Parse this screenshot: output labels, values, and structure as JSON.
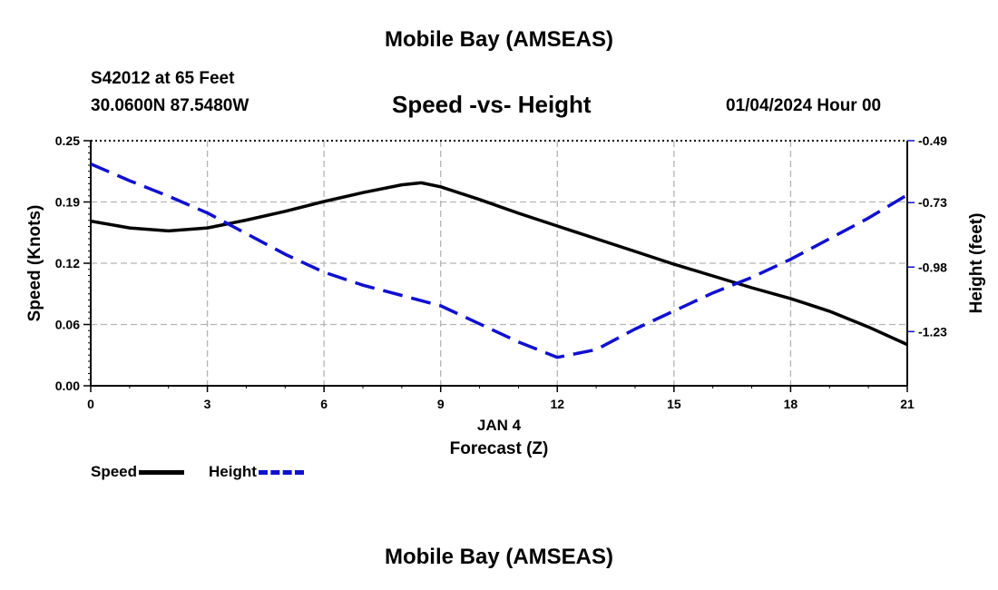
{
  "header": {
    "title_top": "Mobile Bay (AMSEAS)",
    "station": "S42012 at 65 Feet",
    "coords": "30.0600N  87.5480W",
    "chart_title": "Speed -vs- Height",
    "datetime": "01/04/2024 Hour 00",
    "title_bottom": "Mobile Bay (AMSEAS)"
  },
  "legend": {
    "speed_label": "Speed",
    "height_label": "Height"
  },
  "colors": {
    "speed": "#000000",
    "height": "#1010d0",
    "grid": "#b4b4b4"
  },
  "chart_data": {
    "type": "line",
    "title": "Speed -vs- Height",
    "xlabel": "Forecast (Z)",
    "xlabel_date": "JAN 4",
    "ylabel": "Speed (Knots)",
    "y2label": "Height (feet)",
    "xlim": [
      0,
      21
    ],
    "ylim": [
      0,
      0.25
    ],
    "y2lim": [
      -1.44,
      -0.49
    ],
    "x_ticks": [
      "0",
      "3",
      "6",
      "9",
      "12",
      "15",
      "18",
      "21"
    ],
    "y_ticks": [
      "0.00",
      "0.06",
      "0.12",
      "0.19",
      "0.25"
    ],
    "y_tick_values": [
      0,
      0.0625,
      0.125,
      0.1875,
      0.25
    ],
    "y2_ticks": [
      "-0.49",
      "-0.73",
      "-0.98",
      "-1.23"
    ],
    "y2_tick_values": [
      -0.49,
      -0.73,
      -0.98,
      -1.23
    ],
    "grid": true,
    "legend": "bottom-left",
    "series": [
      {
        "name": "Speed",
        "axis": "left",
        "style": "solid",
        "x": [
          0,
          1,
          2,
          3,
          4,
          5,
          6,
          7,
          8,
          8.5,
          9,
          10,
          11,
          12,
          13,
          14,
          15,
          16,
          17,
          18,
          19,
          20,
          21
        ],
        "values": [
          0.168,
          0.161,
          0.158,
          0.161,
          0.169,
          0.178,
          0.188,
          0.197,
          0.205,
          0.207,
          0.203,
          0.19,
          0.176,
          0.163,
          0.15,
          0.137,
          0.124,
          0.112,
          0.1,
          0.089,
          0.076,
          0.06,
          0.042
        ]
      },
      {
        "name": "Height",
        "axis": "right",
        "style": "dashed",
        "x": [
          0,
          1,
          2,
          3,
          4,
          5,
          6,
          7,
          8,
          9,
          10,
          11,
          12,
          13,
          14,
          15,
          16,
          17,
          18,
          19,
          20,
          21
        ],
        "values": [
          -0.58,
          -0.645,
          -0.705,
          -0.77,
          -0.85,
          -0.93,
          -1.0,
          -1.05,
          -1.09,
          -1.13,
          -1.2,
          -1.27,
          -1.33,
          -1.3,
          -1.22,
          -1.15,
          -1.08,
          -1.02,
          -0.95,
          -0.87,
          -0.79,
          -0.7
        ]
      }
    ]
  }
}
